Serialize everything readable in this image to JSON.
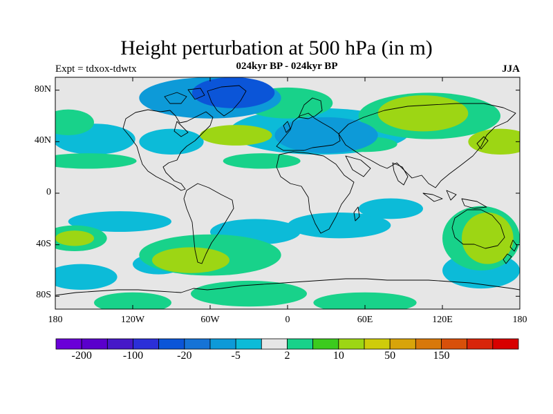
{
  "title": "Height perturbation at 500 hPa (in m)",
  "experiment": "Expt = tdxox-tdwtx",
  "period": "024kyr BP - 024kyr BP",
  "season": "JJA",
  "map": {
    "projection": "cylindrical equidistant",
    "lon_range": [
      -180,
      180
    ],
    "lat_range": [
      -90,
      90
    ],
    "field": "500 hPa height perturbation",
    "units": "m",
    "background_color": "#e6e6e6",
    "x_ticks": [
      {
        "lon": -180,
        "label": "180"
      },
      {
        "lon": -120,
        "label": "120W"
      },
      {
        "lon": -60,
        "label": "60W"
      },
      {
        "lon": 0,
        "label": "0"
      },
      {
        "lon": 60,
        "label": "60E"
      },
      {
        "lon": 120,
        "label": "120E"
      },
      {
        "lon": 180,
        "label": "180"
      }
    ],
    "y_ticks": [
      {
        "lat": 80,
        "label": "80N"
      },
      {
        "lat": 40,
        "label": "40N"
      },
      {
        "lat": 0,
        "label": "0"
      },
      {
        "lat": -40,
        "label": "40S"
      },
      {
        "lat": -80,
        "label": "80S"
      }
    ]
  },
  "colorbar": {
    "colors": [
      "#6a00d8",
      "#5a00cc",
      "#4618c8",
      "#2b2fd8",
      "#0b55d8",
      "#1673d6",
      "#0d9ad8",
      "#0cbbd8",
      "#e6e6e6",
      "#18d28a",
      "#3ccb1e",
      "#9dd614",
      "#cfcc0a",
      "#d8a40a",
      "#d8780a",
      "#d8500a",
      "#d8250a",
      "#d80000"
    ],
    "labels": [
      {
        "boundary": 1,
        "text": "-200"
      },
      {
        "boundary": 3,
        "text": "-100"
      },
      {
        "boundary": 5,
        "text": "-20"
      },
      {
        "boundary": 7,
        "text": "-5"
      },
      {
        "boundary": 9,
        "text": "2"
      },
      {
        "boundary": 11,
        "text": "10"
      },
      {
        "boundary": 13,
        "text": "50"
      },
      {
        "boundary": 15,
        "text": "150"
      }
    ]
  },
  "field_blobs": [
    {
      "level": -3,
      "lon": -42,
      "lat": 78,
      "rlon": 32,
      "rlat": 12
    },
    {
      "level": -2,
      "lon": -60,
      "lat": 74,
      "rlon": 55,
      "rlat": 16
    },
    {
      "level": -2,
      "lon": 30,
      "lat": 45,
      "rlon": 40,
      "rlat": 14
    },
    {
      "level": -1,
      "lon": 25,
      "lat": 48,
      "rlon": 70,
      "rlat": 18
    },
    {
      "level": -1,
      "lon": -150,
      "lat": 42,
      "rlon": 32,
      "rlat": 12
    },
    {
      "level": -1,
      "lon": -90,
      "lat": 40,
      "rlon": 25,
      "rlat": 10
    },
    {
      "level": -1,
      "lon": 150,
      "lat": -60,
      "rlon": 30,
      "rlat": 14
    },
    {
      "level": -1,
      "lon": -25,
      "lat": -30,
      "rlon": 35,
      "rlat": 10
    },
    {
      "level": -1,
      "lon": 40,
      "lat": -25,
      "rlon": 40,
      "rlat": 10
    },
    {
      "level": -1,
      "lon": 80,
      "lat": -12,
      "rlon": 25,
      "rlat": 8
    },
    {
      "level": -1,
      "lon": -130,
      "lat": -22,
      "rlon": 40,
      "rlat": 8
    },
    {
      "level": -1,
      "lon": -160,
      "lat": -65,
      "rlon": 28,
      "rlat": 10
    },
    {
      "level": -1,
      "lon": -100,
      "lat": -55,
      "rlon": 20,
      "rlat": 8
    },
    {
      "level": 2,
      "lon": 105,
      "lat": 62,
      "rlon": 35,
      "rlat": 14
    },
    {
      "level": 1,
      "lon": 110,
      "lat": 60,
      "rlon": 55,
      "rlat": 18
    },
    {
      "level": 1,
      "lon": 0,
      "lat": 70,
      "rlon": 35,
      "rlat": 12
    },
    {
      "level": 2,
      "lon": -40,
      "lat": 45,
      "rlon": 28,
      "rlat": 8
    },
    {
      "level": 1,
      "lon": -170,
      "lat": 55,
      "rlon": 20,
      "rlat": 10
    },
    {
      "level": 1,
      "lon": -155,
      "lat": 25,
      "rlon": 38,
      "rlat": 6
    },
    {
      "level": 1,
      "lon": -20,
      "lat": 25,
      "rlon": 30,
      "rlat": 6
    },
    {
      "level": 2,
      "lon": 165,
      "lat": 40,
      "rlon": 25,
      "rlat": 10
    },
    {
      "level": 2,
      "lon": 155,
      "lat": -35,
      "rlon": 20,
      "rlat": 20
    },
    {
      "level": 1,
      "lon": 150,
      "lat": -35,
      "rlon": 30,
      "rlat": 25
    },
    {
      "level": 2,
      "lon": -165,
      "lat": -35,
      "rlon": 15,
      "rlat": 6
    },
    {
      "level": 1,
      "lon": -165,
      "lat": -35,
      "rlon": 25,
      "rlat": 10
    },
    {
      "level": 2,
      "lon": -75,
      "lat": -52,
      "rlon": 30,
      "rlat": 10
    },
    {
      "level": 1,
      "lon": -60,
      "lat": -48,
      "rlon": 55,
      "rlat": 16
    },
    {
      "level": 1,
      "lon": -30,
      "lat": -78,
      "rlon": 45,
      "rlat": 10
    },
    {
      "level": 1,
      "lon": 60,
      "lat": -85,
      "rlon": 40,
      "rlat": 8
    },
    {
      "level": 1,
      "lon": -120,
      "lat": -85,
      "rlon": 30,
      "rlat": 8
    },
    {
      "level": 1,
      "lon": 60,
      "lat": 38,
      "rlon": 25,
      "rlat": 6
    }
  ]
}
